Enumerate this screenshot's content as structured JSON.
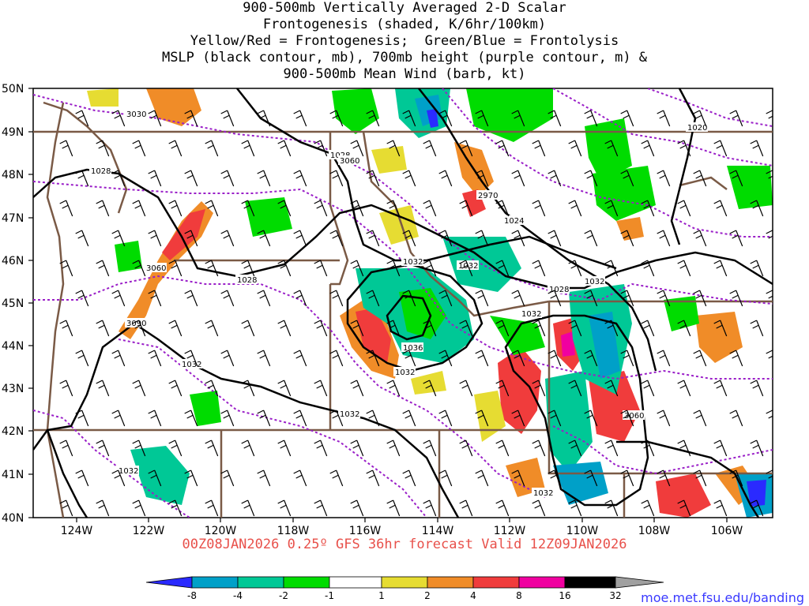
{
  "title": {
    "line1": "900-500mb Vertically Averaged 2-D Scalar",
    "line2": "Frontogenesis (shaded, K/6hr/100km)",
    "line3": "Yellow/Red = Frontogenesis;  Green/Blue = Frontolysis",
    "line4": "MSLP (black contour, mb), 700mb height (purple contour, m) &",
    "line5": "900-500mb Mean Wind (barb, kt)"
  },
  "valid": "00Z08JAN2026 0.25º GFS 36hr forecast Valid 12Z09JAN2026",
  "credit": "moe.met.fsu.edu/banding",
  "lat_labels": [
    "50N",
    "49N",
    "48N",
    "47N",
    "46N",
    "45N",
    "44N",
    "43N",
    "42N",
    "41N",
    "40N"
  ],
  "lon_labels": [
    "124W",
    "122W",
    "120W",
    "118W",
    "116W",
    "114W",
    "112W",
    "110W",
    "108W",
    "106W"
  ],
  "colorbar": {
    "labels": [
      "-8",
      "-4",
      "-2",
      "-1",
      "1",
      "2",
      "4",
      "8",
      "16",
      "32"
    ],
    "colors": [
      "#2a2aff",
      "#00a0c8",
      "#00c896",
      "#00dc00",
      "#ffffff",
      "#e6dc32",
      "#f08c28",
      "#f03c3c",
      "#f000a0",
      "#000000",
      "#a0a0a0"
    ]
  },
  "contour_labels": {
    "mslp": [
      "1028",
      "1028",
      "1028",
      "1032",
      "1032",
      "1032",
      "1036",
      "1032",
      "1024",
      "1028",
      "1032",
      "1032",
      "1032",
      "1020",
      "1032",
      "1032"
    ],
    "height": [
      "3030",
      "3060",
      "3090",
      "3060",
      "2970",
      "3060"
    ]
  },
  "colors": {
    "mslp": "#000000",
    "height": "#9a1fc8",
    "border": "#7a5a46"
  }
}
